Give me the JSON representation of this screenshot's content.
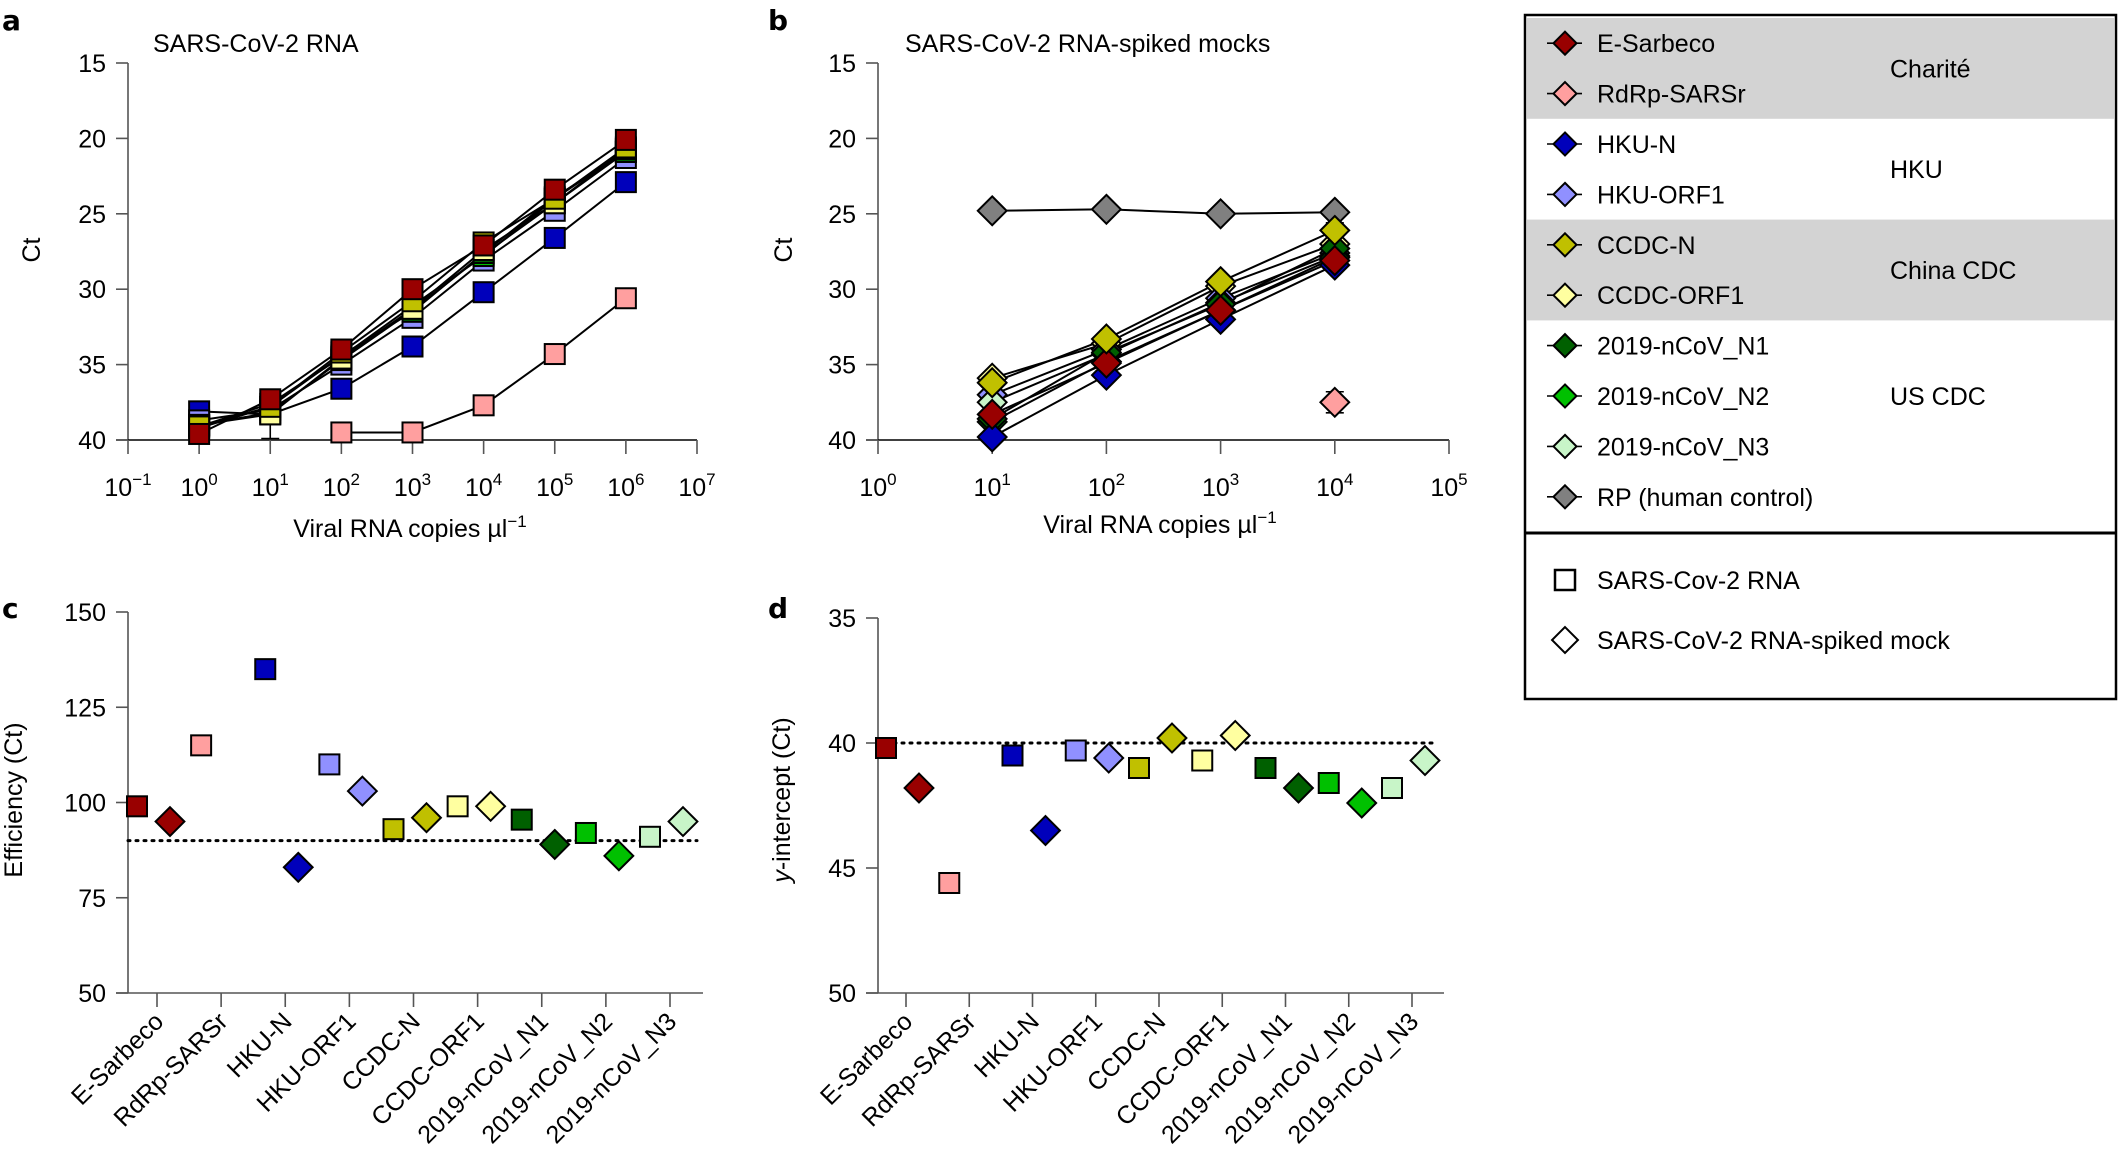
{
  "figure": {
    "panel_labels": [
      "a",
      "b",
      "c",
      "d"
    ]
  },
  "legend": {
    "assays": [
      {
        "name": "E-Sarbeco",
        "color": "#990000"
      },
      {
        "name": "RdRp-SARSr",
        "color": "#ff9f9f"
      },
      {
        "name": "HKU-N",
        "color": "#0000bb"
      },
      {
        "name": "HKU-ORF1",
        "color": "#9090ff"
      },
      {
        "name": "CCDC-N",
        "color": "#c0c000"
      },
      {
        "name": "CCDC-ORF1",
        "color": "#ffffa0"
      },
      {
        "name": "2019-nCoV_N1",
        "color": "#006000"
      },
      {
        "name": "2019-nCoV_N2",
        "color": "#00c000"
      },
      {
        "name": "2019-nCoV_N3",
        "color": "#c8f5c8"
      },
      {
        "name": "RP (human control)",
        "color": "#808080"
      }
    ],
    "groups": [
      {
        "name": "Charité",
        "shaded": true
      },
      {
        "name": "HKU",
        "shaded": false
      },
      {
        "name": "China  CDC",
        "shaded": true
      },
      {
        "name": "US CDC",
        "shaded": false
      }
    ],
    "shape_key": [
      {
        "shape": "square",
        "label": "SARS-Cov-2  RNA"
      },
      {
        "shape": "diamond",
        "label": "SARS-CoV-2 RNA-spiked mock"
      }
    ],
    "shade_color": "#d3d3d3"
  },
  "chart_data": [
    {
      "panel": "a",
      "type": "line",
      "title": "SARS-CoV-2 RNA",
      "xlabel": "Viral RNA copies µl",
      "xlabel_superscript": "−1",
      "ylabel": "Ct",
      "x_scale": "log10",
      "x_exponents": [
        -1,
        0,
        1,
        2,
        3,
        4,
        5,
        6,
        7
      ],
      "xlim_exponent": [
        -1,
        7
      ],
      "ylim": [
        40,
        15
      ],
      "y_inverted": true,
      "yticks": [
        15,
        20,
        25,
        30,
        35,
        40
      ],
      "marker": "square",
      "x": [
        0,
        1,
        2,
        3,
        4,
        5,
        6
      ],
      "series": [
        {
          "name": "RdRp-SARSr",
          "values": [
            null,
            null,
            39.5,
            39.5,
            37.7,
            34.3,
            30.6
          ]
        },
        {
          "name": "HKU-N",
          "values": [
            38.1,
            38.3,
            36.6,
            33.8,
            30.2,
            26.6,
            22.9
          ]
        },
        {
          "name": "HKU-ORF1",
          "values": [
            38.7,
            38.0,
            35.0,
            31.9,
            28.1,
            24.8,
            21.3
          ]
        },
        {
          "name": "2019-nCoV_N3",
          "values": [
            39.0,
            38.2,
            34.7,
            31.4,
            27.7,
            24.3,
            20.9
          ]
        },
        {
          "name": "2019-nCoV_N2",
          "values": [
            39.1,
            37.6,
            34.5,
            31.1,
            27.8,
            24.0,
            20.8
          ]
        },
        {
          "name": "2019-nCoV_N1",
          "values": [
            39.2,
            37.8,
            34.4,
            31.5,
            27.6,
            23.9,
            20.9
          ]
        },
        {
          "name": "CCDC-ORF1",
          "values": [
            39.0,
            38.3,
            34.6,
            31.3,
            27.4,
            24.3,
            20.7
          ]
        },
        {
          "name": "CCDC-N",
          "values": [
            39.1,
            37.8,
            34.2,
            30.8,
            26.9,
            24.0,
            20.6
          ]
        },
        {
          "name": "E-Sarbeco",
          "values": [
            39.6,
            37.3,
            34.0,
            30.0,
            27.1,
            23.4,
            20.1
          ]
        }
      ],
      "error_bars": [
        {
          "name": "CCDC-ORF1",
          "x": 1,
          "low": 39.9,
          "high": 36.8
        }
      ]
    },
    {
      "panel": "b",
      "type": "line",
      "title": "SARS-CoV-2 RNA-spiked mocks",
      "xlabel": "Viral RNA copies µl",
      "xlabel_superscript": "−1",
      "ylabel": "Ct",
      "x_scale": "log10",
      "x_exponents": [
        0,
        1,
        2,
        3,
        4,
        5
      ],
      "xlim_exponent": [
        0,
        5
      ],
      "ylim": [
        40,
        15
      ],
      "y_inverted": true,
      "yticks": [
        15,
        20,
        25,
        30,
        35,
        40
      ],
      "marker": "diamond",
      "x": [
        1,
        2,
        3,
        4
      ],
      "series": [
        {
          "name": "RP (human control)",
          "values": [
            24.8,
            24.7,
            25.0,
            24.9
          ]
        },
        {
          "name": "RdRp-SARSr",
          "values": [
            null,
            null,
            null,
            37.5
          ]
        },
        {
          "name": "CCDC-ORF1",
          "values": [
            35.9,
            33.6,
            29.8,
            27.0
          ]
        },
        {
          "name": "HKU-ORF1",
          "values": [
            37.0,
            34.0,
            30.6,
            27.6
          ]
        },
        {
          "name": "2019-nCoV_N3",
          "values": [
            37.5,
            34.3,
            30.9,
            27.8
          ]
        },
        {
          "name": "2019-nCoV_N2",
          "values": [
            38.8,
            34.8,
            31.4,
            27.9
          ]
        },
        {
          "name": "2019-nCoV_N1",
          "values": [
            38.6,
            34.2,
            31.0,
            27.3
          ]
        },
        {
          "name": "HKU-N",
          "values": [
            39.8,
            35.7,
            32.0,
            28.4
          ]
        },
        {
          "name": "E-Sarbeco",
          "values": [
            38.3,
            34.9,
            31.4,
            28.1
          ]
        },
        {
          "name": "CCDC-N",
          "values": [
            36.2,
            33.3,
            29.5,
            26.1
          ]
        }
      ],
      "error_bars": [
        {
          "name": "RdRp-SARSr",
          "x": 4,
          "low": 38.2,
          "high": 36.8
        },
        {
          "name": "CCDC-N",
          "x": 4,
          "low": 26.8,
          "high": 25.6
        }
      ]
    },
    {
      "panel": "c",
      "type": "scatter",
      "title": "",
      "xlabel": "",
      "ylabel": "Efficiency (Ct)",
      "ylim": [
        50,
        150
      ],
      "yticks": [
        50,
        75,
        100,
        125,
        150
      ],
      "reference_line": 90,
      "categories": [
        "E-Sarbeco",
        "RdRp-SARSr",
        "HKU-N",
        "HKU-ORF1",
        "CCDC-N",
        "CCDC-ORF1",
        "2019-nCoV_N1",
        "2019-nCoV_N2",
        "2019-nCoV_N3"
      ],
      "series": [
        {
          "name": "SARS-Cov-2  RNA",
          "marker": "square",
          "values": [
            99,
            115,
            135,
            110,
            93,
            99,
            95.5,
            92,
            91
          ]
        },
        {
          "name": "SARS-CoV-2 RNA-spiked mock",
          "marker": "diamond",
          "values": [
            95,
            null,
            83,
            103,
            96,
            99,
            89,
            86,
            95
          ]
        }
      ]
    },
    {
      "panel": "d",
      "type": "scatter",
      "title": "",
      "xlabel": "",
      "ylabel": "y-intercept (Ct)",
      "ylabel_italic_prefix": "y",
      "ylabel_rest": "-intercept (Ct)",
      "ylim": [
        50,
        35
      ],
      "y_inverted": true,
      "yticks": [
        35,
        40,
        45,
        50
      ],
      "reference_line": 40,
      "categories": [
        "E-Sarbeco",
        "RdRp-SARSr",
        "HKU-N",
        "HKU-ORF1",
        "CCDC-N",
        "CCDC-ORF1",
        "2019-nCoV_N1",
        "2019-nCoV_N2",
        "2019-nCoV_N3"
      ],
      "series": [
        {
          "name": "SARS-Cov-2  RNA",
          "marker": "square",
          "values": [
            40.2,
            45.6,
            40.5,
            40.3,
            41.0,
            40.7,
            41.0,
            41.6,
            41.8
          ]
        },
        {
          "name": "SARS-CoV-2 RNA-spiked mock",
          "marker": "diamond",
          "values": [
            41.8,
            null,
            43.5,
            40.6,
            39.8,
            39.7,
            41.8,
            42.4,
            40.7
          ]
        }
      ]
    }
  ]
}
